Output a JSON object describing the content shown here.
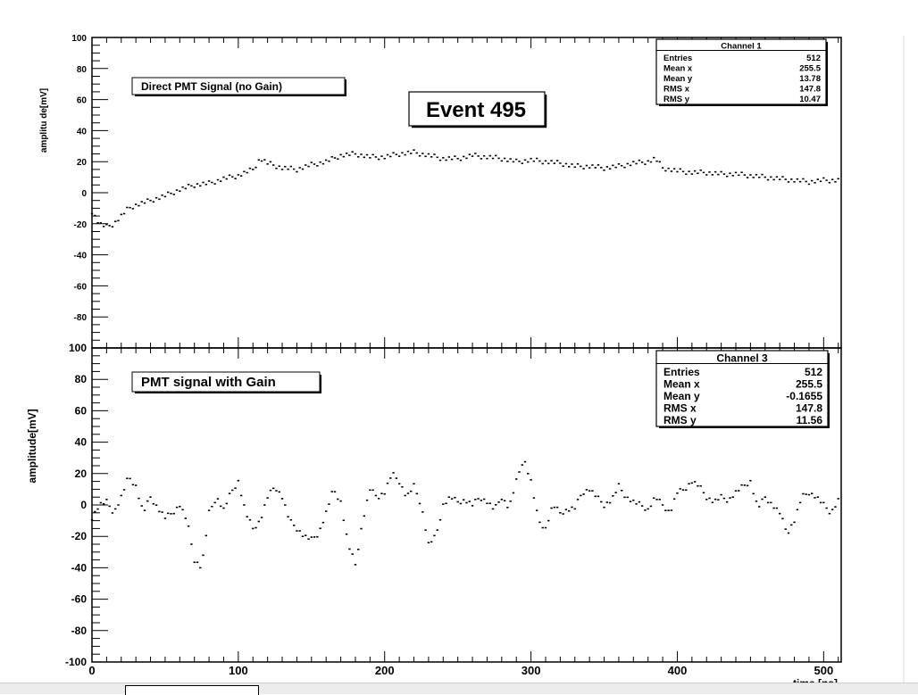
{
  "event_label": "Event 495",
  "xlabel": "time [ns]",
  "x_ticks": [
    "0",
    "100",
    "200",
    "300",
    "400",
    "500"
  ],
  "y_ticks_top": [
    "100",
    "80",
    "60",
    "40",
    "20",
    "0",
    "-20",
    "-40",
    "-60",
    "-80"
  ],
  "y_ticks_bottom": [
    "100",
    "80",
    "60",
    "40",
    "20",
    "0",
    "-20",
    "-40",
    "-60",
    "-80",
    "-100"
  ],
  "colors": {
    "data": "#000000",
    "frame": "#000000",
    "background": "#ffffff"
  },
  "chart_data": [
    {
      "type": "scatter",
      "panel": "top",
      "title": "Direct PMT Signal (no Gain)",
      "ylabel": "amplitu de[mV]",
      "xlim": [
        0,
        512
      ],
      "ylim": [
        -100,
        100
      ],
      "stats_box": {
        "title": "Channel 1",
        "rows": [
          {
            "label": "Entries",
            "value": "512"
          },
          {
            "label": "Mean x",
            "value": "255.5"
          },
          {
            "label": "Mean y",
            "value": "13.78"
          },
          {
            "label": "RMS x",
            "value": "147.8"
          },
          {
            "label": "RMS y",
            "value": "10.47"
          }
        ]
      },
      "series": [
        {
          "x": [
            0,
            5,
            10,
            15,
            20,
            25,
            30,
            40,
            50,
            60,
            70,
            80,
            90,
            100,
            110,
            115,
            120,
            130,
            140,
            150,
            160,
            170,
            180,
            190,
            200,
            210,
            220,
            230,
            240,
            250,
            260,
            270,
            280,
            290,
            300,
            310,
            320,
            330,
            340,
            350,
            360,
            370,
            380,
            385,
            390,
            400,
            410,
            420,
            430,
            440,
            450,
            460,
            470,
            480,
            490,
            500,
            510
          ],
          "y": [
            -12,
            -20,
            -22,
            -20,
            -15,
            -10,
            -8,
            -5,
            -2,
            2,
            5,
            6,
            9,
            11,
            15,
            22,
            19,
            16,
            15,
            18,
            20,
            24,
            25,
            23,
            23,
            25,
            26,
            24,
            22,
            22,
            24,
            23,
            22,
            20,
            21,
            20,
            19,
            17,
            17,
            16,
            17,
            19,
            20,
            22,
            16,
            14,
            13,
            13,
            12,
            12,
            11,
            10,
            9,
            8,
            7,
            8,
            8
          ]
        }
      ]
    },
    {
      "type": "scatter",
      "panel": "bottom",
      "title": "PMT signal with Gain",
      "ylabel": "amplitude[mV]",
      "xlabel": "time [ns]",
      "xlim": [
        0,
        512
      ],
      "ylim": [
        -100,
        100
      ],
      "stats_box": {
        "title": "Channel 3",
        "rows": [
          {
            "label": "Entries",
            "value": "512"
          },
          {
            "label": "Mean x",
            "value": "255.5"
          },
          {
            "label": "Mean y",
            "value": "-0.1655"
          },
          {
            "label": "RMS x",
            "value": "147.8"
          },
          {
            "label": "RMS y",
            "value": "11.56"
          }
        ]
      },
      "series": [
        {
          "x": [
            0,
            5,
            10,
            15,
            20,
            25,
            30,
            35,
            40,
            45,
            50,
            55,
            60,
            65,
            70,
            75,
            80,
            85,
            90,
            95,
            100,
            105,
            110,
            115,
            120,
            125,
            130,
            135,
            140,
            145,
            150,
            155,
            160,
            165,
            170,
            175,
            180,
            185,
            190,
            195,
            200,
            205,
            210,
            215,
            220,
            225,
            230,
            235,
            240,
            245,
            250,
            255,
            260,
            265,
            270,
            275,
            280,
            285,
            290,
            295,
            300,
            305,
            310,
            315,
            320,
            325,
            330,
            335,
            340,
            345,
            350,
            355,
            360,
            365,
            370,
            375,
            380,
            385,
            390,
            395,
            400,
            405,
            410,
            415,
            420,
            425,
            430,
            435,
            440,
            445,
            450,
            455,
            460,
            465,
            470,
            475,
            480,
            485,
            490,
            495,
            500,
            505,
            510
          ],
          "y": [
            -8,
            0,
            2,
            -5,
            5,
            18,
            12,
            -5,
            5,
            -2,
            -8,
            -5,
            0,
            -10,
            -35,
            -40,
            -5,
            5,
            -3,
            8,
            15,
            -5,
            -15,
            -10,
            5,
            12,
            5,
            -10,
            -15,
            -20,
            -22,
            -18,
            -5,
            10,
            2,
            -25,
            -38,
            -10,
            10,
            5,
            8,
            20,
            15,
            5,
            12,
            0,
            -25,
            -20,
            0,
            5,
            2,
            3,
            0,
            5,
            2,
            -3,
            5,
            -2,
            15,
            30,
            15,
            -10,
            -15,
            0,
            -5,
            -3,
            -2,
            8,
            10,
            5,
            0,
            3,
            12,
            5,
            2,
            0,
            -3,
            5,
            0,
            -5,
            8,
            10,
            15,
            12,
            5,
            2,
            5,
            3,
            8,
            12,
            15,
            -2,
            5,
            0,
            -5,
            -18,
            -10,
            5,
            8,
            5,
            0,
            -5,
            3
          ]
        }
      ]
    }
  ]
}
